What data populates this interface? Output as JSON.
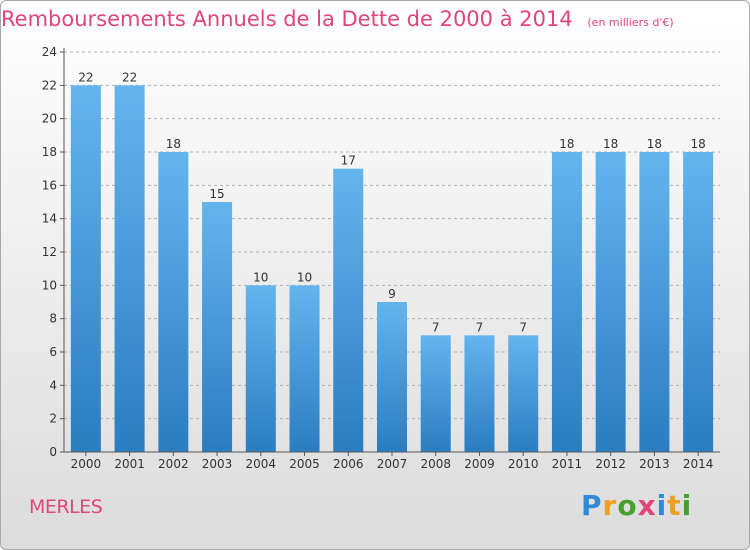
{
  "title": "Remboursements Annuels de la Dette de 2000 à 2014",
  "subtitle": "(en milliers d'€)",
  "place": "MERLES",
  "brand": {
    "text": "Proxiti",
    "letters": [
      "P",
      "r",
      "o",
      "x",
      "i",
      "t",
      "i"
    ],
    "colors": [
      "#2e8ad8",
      "#f0a020",
      "#47a02a",
      "#e0457b",
      "#2e8ad8",
      "#f0a020",
      "#47a02a"
    ]
  },
  "colors": {
    "accent": "#e0457b",
    "bar_top": "#64b4ee",
    "bar_bottom": "#2a7dc1",
    "grid": "#b0b0b0",
    "axis": "#555555",
    "text": "#333333"
  },
  "chart_data": {
    "type": "bar",
    "title": "Remboursements Annuels de la Dette de 2000 à 2014",
    "xlabel": "",
    "ylabel": "",
    "categories": [
      "2000",
      "2001",
      "2002",
      "2003",
      "2004",
      "2005",
      "2006",
      "2007",
      "2008",
      "2009",
      "2010",
      "2011",
      "2012",
      "2013",
      "2014"
    ],
    "values": [
      22,
      22,
      18,
      15,
      10,
      10,
      17,
      9,
      7,
      7,
      7,
      18,
      18,
      18,
      18
    ],
    "ylim": [
      0,
      24
    ],
    "yticks": [
      0,
      2,
      4,
      6,
      8,
      10,
      12,
      14,
      16,
      18,
      20,
      22,
      24
    ],
    "grid": true,
    "data_labels": true
  }
}
